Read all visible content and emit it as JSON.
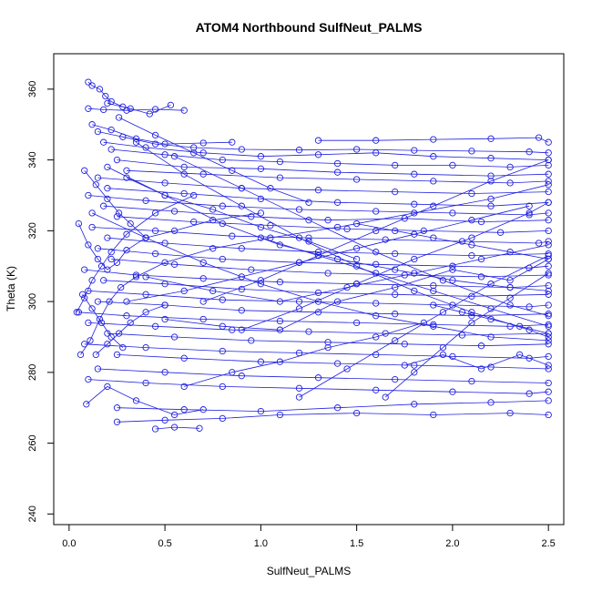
{
  "chart_data": {
    "type": "line",
    "title": "ATOM4 Northbound SulfNeut_PALMS",
    "xlabel": "SulfNeut_PALMS",
    "ylabel": "Theta (K)",
    "xlim": [
      -0.08,
      2.58
    ],
    "ylim": [
      237,
      370
    ],
    "x_ticks": [
      0.0,
      0.5,
      1.0,
      1.5,
      2.0,
      2.5
    ],
    "x_tick_labels": [
      "0.0",
      "0.5",
      "1.0",
      "1.5",
      "2.0",
      "2.5"
    ],
    "y_ticks": [
      240,
      260,
      280,
      300,
      320,
      340,
      360
    ],
    "y_tick_labels": [
      "240",
      "260",
      "280",
      "300",
      "320",
      "340",
      "360"
    ],
    "color": "#1f1fe0",
    "grid": false,
    "series": [
      {
        "x": [
          0.1,
          0.12,
          0.16,
          0.19,
          0.22,
          0.28
        ],
        "y": [
          362.0,
          361.0,
          360.0,
          358.0,
          356.5,
          355.0
        ]
      },
      {
        "x": [
          0.1,
          0.18,
          0.3,
          0.45,
          0.6
        ],
        "y": [
          354.5,
          354.2,
          354.0,
          354.3,
          354.0
        ]
      },
      {
        "x": [
          0.2,
          0.32,
          0.42,
          0.53
        ],
        "y": [
          356.0,
          354.5,
          353.0,
          355.5
        ]
      },
      {
        "x": [
          0.12,
          0.22,
          0.35,
          0.5,
          0.7,
          0.85
        ],
        "y": [
          350.0,
          348.5,
          346.0,
          344.5,
          344.8,
          345.0
        ]
      },
      {
        "x": [
          0.15,
          0.28,
          0.45,
          0.65,
          0.9,
          1.2,
          1.5,
          1.8,
          2.1,
          2.4,
          2.5
        ],
        "y": [
          348.0,
          346.5,
          344.5,
          343.5,
          343.0,
          342.8,
          343.0,
          342.7,
          342.5,
          342.3,
          342.0
        ]
      },
      {
        "x": [
          0.18,
          0.4,
          0.7,
          1.0,
          1.3,
          1.6,
          1.9,
          2.2,
          2.5
        ],
        "y": [
          345.0,
          343.5,
          342.0,
          341.0,
          341.5,
          342.0,
          341.0,
          340.5,
          340.0
        ]
      },
      {
        "x": [
          0.22,
          0.5,
          0.8,
          1.1,
          1.4,
          1.7,
          2.0,
          2.3,
          2.5
        ],
        "y": [
          343.0,
          341.5,
          340.0,
          339.5,
          339.0,
          338.5,
          338.5,
          338.0,
          338.5
        ]
      },
      {
        "x": [
          0.25,
          0.6,
          1.0,
          1.4,
          1.8,
          2.2,
          2.5
        ],
        "y": [
          340.0,
          338.0,
          337.5,
          336.5,
          336.0,
          335.5,
          336.0
        ]
      },
      {
        "x": [
          0.3,
          0.7,
          1.1,
          1.5,
          1.9,
          2.3,
          2.5
        ],
        "y": [
          337.0,
          336.0,
          335.0,
          334.5,
          334.0,
          333.5,
          334.0
        ]
      },
      {
        "x": [
          0.15,
          0.5,
          0.9,
          1.3,
          1.7,
          2.1,
          2.5
        ],
        "y": [
          335.0,
          333.5,
          332.0,
          331.5,
          331.0,
          330.5,
          331.0
        ]
      },
      {
        "x": [
          0.2,
          0.6,
          1.0,
          1.4,
          1.8,
          2.2,
          2.5
        ],
        "y": [
          332.0,
          330.5,
          329.0,
          328.0,
          327.5,
          327.0,
          328.0
        ]
      },
      {
        "x": [
          0.1,
          0.4,
          0.8,
          1.2,
          1.6,
          2.0,
          2.4,
          2.5
        ],
        "y": [
          330.0,
          328.5,
          327.0,
          326.0,
          325.5,
          325.0,
          324.5,
          325.0
        ]
      },
      {
        "x": [
          0.18,
          0.55,
          0.95,
          1.35,
          1.75,
          2.15,
          2.5
        ],
        "y": [
          327.0,
          325.5,
          324.0,
          323.0,
          323.5,
          322.5,
          323.0
        ]
      },
      {
        "x": [
          0.25,
          0.65,
          1.05,
          1.45,
          1.85,
          2.25,
          2.5
        ],
        "y": [
          324.0,
          322.5,
          321.5,
          320.5,
          320.0,
          319.5,
          320.0
        ]
      },
      {
        "x": [
          0.12,
          0.45,
          0.85,
          1.25,
          1.65,
          2.05,
          2.45,
          2.5
        ],
        "y": [
          321.0,
          320.0,
          318.5,
          318.0,
          317.5,
          317.0,
          316.5,
          317.0
        ]
      },
      {
        "x": [
          0.2,
          0.5,
          0.9,
          1.3,
          1.7,
          2.1,
          2.5
        ],
        "y": [
          318.0,
          316.5,
          315.0,
          314.0,
          313.5,
          313.0,
          313.5
        ]
      },
      {
        "x": [
          0.15,
          0.45,
          0.8,
          1.2,
          1.6,
          2.0,
          2.4,
          2.5
        ],
        "y": [
          315.0,
          313.5,
          312.0,
          311.0,
          310.5,
          310.0,
          309.5,
          310.0
        ]
      },
      {
        "x": [
          0.22,
          0.55,
          0.95,
          1.35,
          1.75,
          2.15,
          2.5
        ],
        "y": [
          312.0,
          310.5,
          309.0,
          308.0,
          307.5,
          307.0,
          307.5
        ]
      },
      {
        "x": [
          0.08,
          0.35,
          0.7,
          1.1,
          1.5,
          1.9,
          2.3,
          2.5
        ],
        "y": [
          309.0,
          307.5,
          306.5,
          305.5,
          305.0,
          304.5,
          304.0,
          304.5
        ]
      },
      {
        "x": [
          0.18,
          0.5,
          0.9,
          1.3,
          1.7,
          2.1,
          2.5
        ],
        "y": [
          306.0,
          305.0,
          303.5,
          302.5,
          302.0,
          301.5,
          302.0
        ]
      },
      {
        "x": [
          0.1,
          0.4,
          0.8,
          1.2,
          1.6,
          2.0,
          2.4,
          2.5
        ],
        "y": [
          303.0,
          302.0,
          300.5,
          300.0,
          299.5,
          299.0,
          298.5,
          299.0
        ]
      },
      {
        "x": [
          0.15,
          0.5,
          0.9,
          1.3,
          1.7,
          2.1,
          2.5
        ],
        "y": [
          300.0,
          299.0,
          297.5,
          297.0,
          296.5,
          296.0,
          296.5
        ]
      },
      {
        "x": [
          0.05,
          0.3,
          0.7,
          1.1,
          1.5,
          1.9,
          2.3,
          2.5
        ],
        "y": [
          297.0,
          296.0,
          295.0,
          294.5,
          294.0,
          293.5,
          293.0,
          293.5
        ]
      },
      {
        "x": [
          0.1,
          0.45,
          0.85,
          1.25,
          1.65,
          2.05,
          2.5
        ],
        "y": [
          294.0,
          293.0,
          292.0,
          291.5,
          291.0,
          290.5,
          291.0
        ]
      },
      {
        "x": [
          0.2,
          0.55,
          0.95,
          1.35,
          1.75,
          2.15,
          2.5
        ],
        "y": [
          291.0,
          290.0,
          289.0,
          288.5,
          288.0,
          287.5,
          288.0
        ]
      },
      {
        "x": [
          0.08,
          0.4,
          0.8,
          1.2,
          1.6,
          2.0,
          2.4,
          2.5
        ],
        "y": [
          288.0,
          287.0,
          286.0,
          285.5,
          285.0,
          284.5,
          284.0,
          284.5
        ]
      },
      {
        "x": [
          0.25,
          0.6,
          1.0,
          1.4,
          1.8,
          2.2,
          2.5
        ],
        "y": [
          285.0,
          284.0,
          283.0,
          282.5,
          282.0,
          281.5,
          281.0
        ]
      },
      {
        "x": [
          0.15,
          0.5,
          0.9,
          1.3,
          1.7,
          2.1,
          2.5
        ],
        "y": [
          281.0,
          280.0,
          279.0,
          278.5,
          278.0,
          277.5,
          277.0
        ]
      },
      {
        "x": [
          0.1,
          0.4,
          0.8,
          1.2,
          1.6,
          2.0,
          2.4,
          2.5
        ],
        "y": [
          278.0,
          277.0,
          276.0,
          275.5,
          275.0,
          274.5,
          274.0,
          274.5
        ]
      },
      {
        "x": [
          0.25,
          0.6,
          1.0,
          1.4,
          1.8,
          2.2,
          2.5
        ],
        "y": [
          270.0,
          269.5,
          269.0,
          270.0,
          271.0,
          271.5,
          272.0
        ]
      },
      {
        "x": [
          0.25,
          0.5,
          0.8,
          1.1,
          1.5,
          1.9,
          2.3,
          2.5
        ],
        "y": [
          266.0,
          266.5,
          267.0,
          268.0,
          268.5,
          268.0,
          268.5,
          268.0
        ]
      },
      {
        "x": [
          0.45,
          0.55,
          0.68
        ],
        "y": [
          264.0,
          264.5,
          264.2
        ]
      },
      {
        "x": [
          0.09,
          0.2,
          0.35,
          0.55,
          0.7
        ],
        "y": [
          271.0,
          276.0,
          272.0,
          268.0,
          269.5
        ]
      },
      {
        "x": [
          0.05,
          0.1,
          0.15,
          0.2,
          0.25,
          0.3,
          0.4,
          0.55,
          0.75,
          1.0
        ],
        "y": [
          322.0,
          316.0,
          312.0,
          309.0,
          311.0,
          314.5,
          318.0,
          320.0,
          323.0,
          325.0
        ]
      },
      {
        "x": [
          0.04,
          0.08,
          0.12,
          0.17,
          0.22,
          0.3,
          0.45,
          0.65
        ],
        "y": [
          297.0,
          301.0,
          306.0,
          310.0,
          314.0,
          319.0,
          325.0,
          330.0
        ]
      },
      {
        "x": [
          0.06,
          0.11,
          0.16,
          0.21,
          0.27,
          0.35,
          0.5,
          0.75,
          1.05,
          1.4,
          1.8,
          2.2,
          2.5
        ],
        "y": [
          285.0,
          289.0,
          295.0,
          300.0,
          304.0,
          307.0,
          311.0,
          315.0,
          318.0,
          321.0,
          325.0,
          329.0,
          333.0
        ]
      },
      {
        "x": [
          0.3,
          0.6,
          0.9,
          1.2,
          1.5,
          1.8,
          2.1,
          2.4
        ],
        "y": [
          300.0,
          303.0,
          307.0,
          311.0,
          315.0,
          319.0,
          323.0,
          327.0
        ]
      },
      {
        "x": [
          0.5,
          0.8,
          1.1,
          1.4,
          1.7,
          2.0,
          2.3,
          2.5
        ],
        "y": [
          295.0,
          293.0,
          292.0,
          300.0,
          304.0,
          309.0,
          306.0,
          312.0
        ]
      },
      {
        "x": [
          0.2,
          0.5,
          0.8,
          1.1,
          1.4,
          1.7,
          2.0,
          2.3,
          2.5
        ],
        "y": [
          338.0,
          330.0,
          322.0,
          316.0,
          312.0,
          309.0,
          306.0,
          304.0,
          303.0
        ]
      },
      {
        "x": [
          0.12,
          0.4,
          0.7,
          1.0,
          1.3,
          1.6,
          1.9,
          2.2,
          2.5
        ],
        "y": [
          325.0,
          318.0,
          311.0,
          305.0,
          300.0,
          296.0,
          293.0,
          290.0,
          289.0
        ]
      },
      {
        "x": [
          0.35,
          0.6,
          0.9,
          1.2,
          1.5,
          1.8,
          2.1,
          2.4,
          2.5
        ],
        "y": [
          345.0,
          336.0,
          327.0,
          318.0,
          310.0,
          303.0,
          297.0,
          292.0,
          290.0
        ]
      },
      {
        "x": [
          0.55,
          0.9,
          1.25,
          1.6,
          1.95,
          2.3,
          2.5
        ],
        "y": [
          341.0,
          332.0,
          323.0,
          314.0,
          306.0,
          299.0,
          296.0
        ]
      },
      {
        "x": [
          0.7,
          1.0,
          1.3,
          1.6,
          1.9,
          2.2,
          2.5
        ],
        "y": [
          300.0,
          306.0,
          313.0,
          320.0,
          327.0,
          334.0,
          340.0
        ]
      },
      {
        "x": [
          0.9,
          1.2,
          1.5,
          1.8,
          2.1,
          2.4,
          2.5
        ],
        "y": [
          292.0,
          298.0,
          305.0,
          312.0,
          318.0,
          325.0,
          328.0
        ]
      },
      {
        "x": [
          1.0,
          1.3,
          1.6,
          1.9,
          2.2,
          2.5
        ],
        "y": [
          318.0,
          313.0,
          308.0,
          303.0,
          298.0,
          293.0
        ]
      },
      {
        "x": [
          0.4,
          0.75,
          1.1,
          1.45,
          1.8,
          2.15,
          2.5
        ],
        "y": [
          307.0,
          303.0,
          300.0,
          304.0,
          308.0,
          312.0,
          316.0
        ]
      },
      {
        "x": [
          1.2,
          1.45,
          1.7,
          1.95,
          2.2,
          2.5
        ],
        "y": [
          273.0,
          281.0,
          289.0,
          297.0,
          305.0,
          313.0
        ]
      },
      {
        "x": [
          1.65,
          1.8,
          1.95,
          2.1,
          2.3,
          2.5
        ],
        "y": [
          273.0,
          280.0,
          287.0,
          294.0,
          301.0,
          308.0
        ]
      },
      {
        "x": [
          0.3,
          0.5,
          0.75,
          1.0,
          1.25,
          1.5
        ],
        "y": [
          335.0,
          330.0,
          326.0,
          321.0,
          317.0,
          312.0
        ]
      },
      {
        "x": [
          0.26,
          0.45,
          0.65,
          0.85,
          1.05,
          1.25
        ],
        "y": [
          352.0,
          347.0,
          342.0,
          337.0,
          332.0,
          328.0
        ]
      },
      {
        "x": [
          0.08,
          0.14,
          0.2,
          0.26,
          0.32,
          0.4
        ],
        "y": [
          337.0,
          333.0,
          329.0,
          325.0,
          322.0,
          318.0
        ]
      },
      {
        "x": [
          0.07,
          0.12,
          0.17,
          0.22,
          0.28
        ],
        "y": [
          302.0,
          298.0,
          294.0,
          290.0,
          287.0
        ]
      },
      {
        "x": [
          0.14,
          0.2,
          0.26,
          0.32,
          0.4,
          0.5
        ],
        "y": [
          285.0,
          288.0,
          291.0,
          294.0,
          297.0,
          299.0
        ]
      },
      {
        "x": [
          1.3,
          1.6,
          1.9,
          2.2,
          2.45,
          2.5
        ],
        "y": [
          345.5,
          345.5,
          345.8,
          346.0,
          346.3,
          345.0
        ]
      },
      {
        "x": [
          1.75,
          1.95,
          2.15,
          2.35,
          2.5
        ],
        "y": [
          282.0,
          285.0,
          281.0,
          285.0,
          282.0
        ]
      },
      {
        "x": [
          1.9,
          2.05,
          2.2,
          2.35,
          2.5
        ],
        "y": [
          299.0,
          297.0,
          295.0,
          293.0,
          291.0
        ]
      },
      {
        "x": [
          1.5,
          1.7,
          1.9,
          2.1,
          2.3,
          2.5
        ],
        "y": [
          322.0,
          320.0,
          318.0,
          316.0,
          314.0,
          312.0
        ]
      },
      {
        "x": [
          0.6,
          0.85,
          1.1,
          1.35,
          1.6,
          1.85
        ],
        "y": [
          276.0,
          280.0,
          283.0,
          287.0,
          290.0,
          294.0
        ]
      }
    ]
  }
}
